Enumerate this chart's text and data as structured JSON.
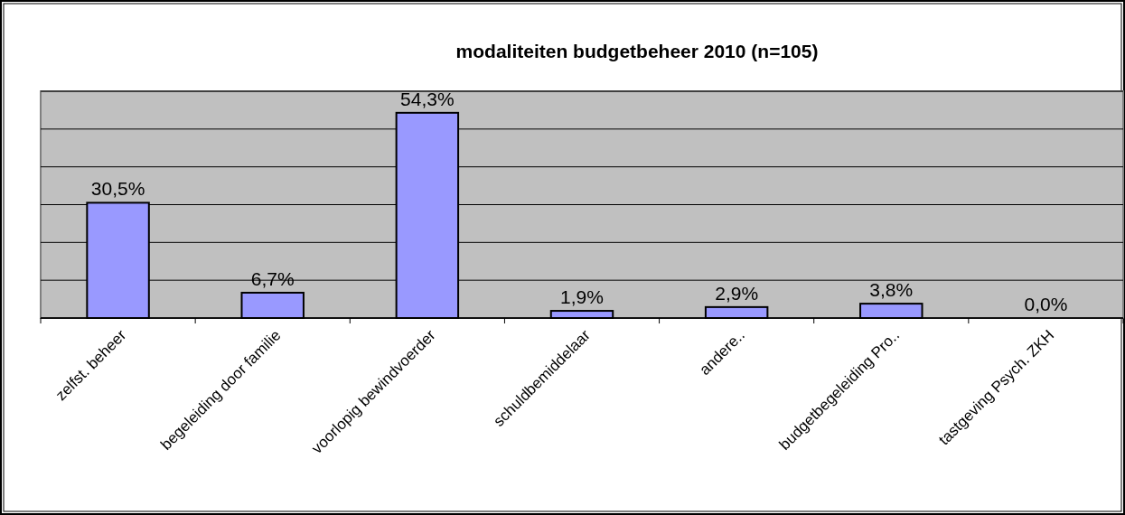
{
  "chart_data": {
    "type": "bar",
    "title": "modaliteiten budgetbeheer 2010 (n=105)",
    "categories": [
      "zelfst. beheer",
      "begeleiding door familie",
      "voorlopig bewindvoerder",
      "schuldbemiddelaar",
      "andere..",
      "budgetbegeleiding Pro..",
      "tastgeving Psych. ZKH"
    ],
    "values": [
      30.5,
      6.7,
      54.3,
      1.9,
      2.9,
      3.8,
      0.0
    ],
    "value_labels": [
      "30,5%",
      "6,7%",
      "54,3%",
      "1,9%",
      "2,9%",
      "3,8%",
      "0,0%"
    ],
    "color": "#9999ff",
    "ylim": [
      0,
      60
    ],
    "yticks": [
      {
        "value": 0,
        "label": null
      },
      {
        "value": 10,
        "label": null
      },
      {
        "value": 20,
        "label": null
      },
      {
        "value": 30,
        "label": null
      },
      {
        "value": 40,
        "label": null
      },
      {
        "value": 50,
        "label": null
      },
      {
        "value": 60,
        "label": null
      }
    ],
    "tick_labels": "x",
    "grid": "y"
  }
}
